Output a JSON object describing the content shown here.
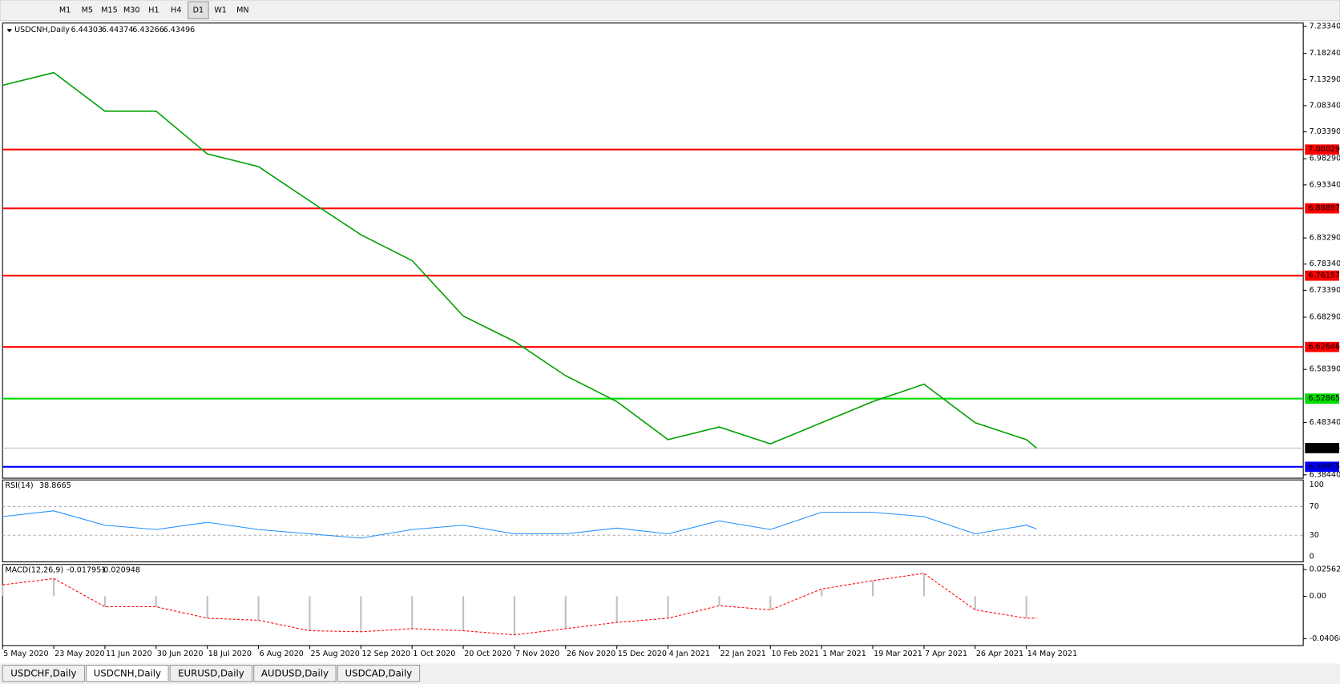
{
  "toolbar": {
    "timeframes": [
      "M1",
      "M5",
      "M15",
      "M30",
      "H1",
      "H4",
      "D1",
      "W1",
      "MN"
    ],
    "active": 6
  },
  "chart_data": {
    "type": "line",
    "title": "USDCNH,Daily",
    "ohlc": [
      6.44303,
      6.44374,
      6.43266,
      6.43496
    ],
    "color": "#00a000",
    "categories": [
      "5 May 2020",
      "23 May 2020",
      "11 Jun 2020",
      "30 Jun 2020",
      "18 Jul 2020",
      "6 Aug 2020",
      "25 Aug 2020",
      "12 Sep 2020",
      "1 Oct 2020",
      "20 Oct 2020",
      "7 Nov 2020",
      "26 Nov 2020",
      "15 Dec 2020",
      "4 Jan 2021",
      "22 Jan 2021",
      "10 Feb 2021",
      "1 Mar 2021",
      "19 Mar 2021",
      "7 Apr 2021",
      "26 Apr 2021",
      "14 May 2021"
    ],
    "values": [
      7.122,
      7.146,
      7.073,
      7.073,
      6.992,
      6.968,
      6.903,
      6.839,
      6.79,
      6.685,
      6.637,
      6.572,
      6.523,
      6.451,
      6.475,
      6.443,
      6.483,
      6.523,
      6.556,
      6.483,
      6.451
    ],
    "ylim": [
      6.3844,
      7.2334
    ],
    "yticks": [
      {
        "value": 7.2334,
        "label": "7.23340"
      },
      {
        "value": 7.1824,
        "label": "7.18240"
      },
      {
        "value": 7.1329,
        "label": "7.13290"
      },
      {
        "value": 7.0834,
        "label": "7.08340"
      },
      {
        "value": 7.0339,
        "label": "7.03390"
      },
      {
        "value": 6.9829,
        "label": "6.98290"
      },
      {
        "value": 6.9334,
        "label": "6.93340"
      },
      {
        "value": 6.8329,
        "label": "6.83290"
      },
      {
        "value": 6.7834,
        "label": "6.78340"
      },
      {
        "value": 6.7339,
        "label": "6.73390"
      },
      {
        "value": 6.6829,
        "label": "6.68290"
      },
      {
        "value": 6.5839,
        "label": "6.58390"
      },
      {
        "value": 6.4834,
        "label": "6.48340"
      },
      {
        "value": 6.3844,
        "label": "6.38440"
      }
    ],
    "levels": [
      {
        "value": 7.00029,
        "color": "#ff0000"
      },
      {
        "value": 6.88897,
        "color": "#ff0000"
      },
      {
        "value": 6.76157,
        "color": "#ff0000"
      },
      {
        "value": 6.62646,
        "color": "#ff0000"
      },
      {
        "value": 6.52865,
        "color": "#00dd00"
      },
      {
        "value": 6.39955,
        "color": "#0000ff"
      }
    ],
    "rsi": {
      "label": "RSI(14)",
      "value": 38.8665,
      "color": "#1e90ff",
      "ylim": [
        0,
        100
      ],
      "yticks": [
        100,
        70,
        30,
        0
      ],
      "values": [
        56,
        64,
        44,
        38,
        48,
        38,
        32,
        26,
        38,
        44,
        32,
        32,
        40,
        32,
        50,
        38,
        62,
        62,
        56,
        32,
        44
      ]
    },
    "macd": {
      "label": "MACD(12,26,9)",
      "main": -0.017951,
      "signal": -0.020948,
      "color": "#ff0000",
      "ylim": [
        -0.040687,
        0.025623
      ],
      "yticks": [
        0.025623,
        {
          "value": 0,
          "label": "0.00"
        },
        -0.040687
      ],
      "values": [
        0.011,
        0.017,
        -0.01,
        -0.01,
        -0.021,
        -0.023,
        -0.033,
        -0.034,
        -0.031,
        -0.033,
        -0.037,
        -0.031,
        -0.025,
        -0.021,
        -0.009,
        -0.013,
        0.007,
        0.015,
        0.022,
        -0.013,
        -0.021
      ]
    }
  },
  "tabs": [
    "USDCHF,Daily",
    "USDCNH,Daily",
    "EURUSD,Daily",
    "AUDUSD,Daily",
    "USDCAD,Daily"
  ],
  "active_tab": 1
}
